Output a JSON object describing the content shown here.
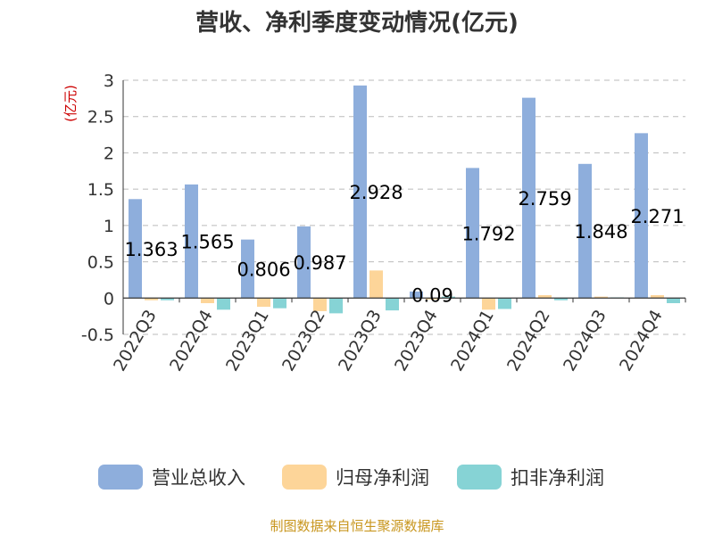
{
  "chart_data": {
    "type": "bar",
    "title": "营收、净利季度变动情况(亿元)",
    "ylabel": "(亿元)",
    "xlabel": "",
    "categories": [
      "2022Q3",
      "2022Q4",
      "2023Q1",
      "2023Q2",
      "2023Q3",
      "2023Q4",
      "2024Q1",
      "2024Q2",
      "2024Q3",
      "2024Q4"
    ],
    "series": [
      {
        "name": "营业总收入",
        "color": "#8eaedc",
        "values": [
          1.363,
          1.565,
          0.806,
          0.987,
          2.928,
          0.09,
          1.792,
          2.759,
          1.848,
          2.271
        ]
      },
      {
        "name": "归母净利润",
        "color": "#fdd599",
        "values": [
          -0.03,
          -0.07,
          -0.12,
          -0.18,
          0.38,
          -0.02,
          -0.16,
          0.04,
          0.02,
          0.04
        ]
      },
      {
        "name": "扣非净利润",
        "color": "#86d3d5",
        "values": [
          -0.03,
          -0.16,
          -0.14,
          -0.21,
          -0.17,
          0.02,
          -0.15,
          -0.03,
          0.01,
          -0.07
        ]
      }
    ],
    "data_labels": [
      "1.363",
      "1.565",
      "0.806",
      "0.987",
      "2.928",
      "0.09",
      "1.792",
      "2.759",
      "1.848",
      "2.271"
    ],
    "yticks": [
      "3",
      "2.5",
      "2",
      "1.5",
      "1",
      "0.5",
      "0",
      "-0.5"
    ],
    "ytick_values": [
      3,
      2.5,
      2,
      1.5,
      1,
      0.5,
      0,
      -0.5
    ],
    "ylim": [
      -0.5,
      3
    ],
    "grid": true,
    "legend_position": "bottom"
  },
  "source": "制图数据来自恒生聚源数据库"
}
